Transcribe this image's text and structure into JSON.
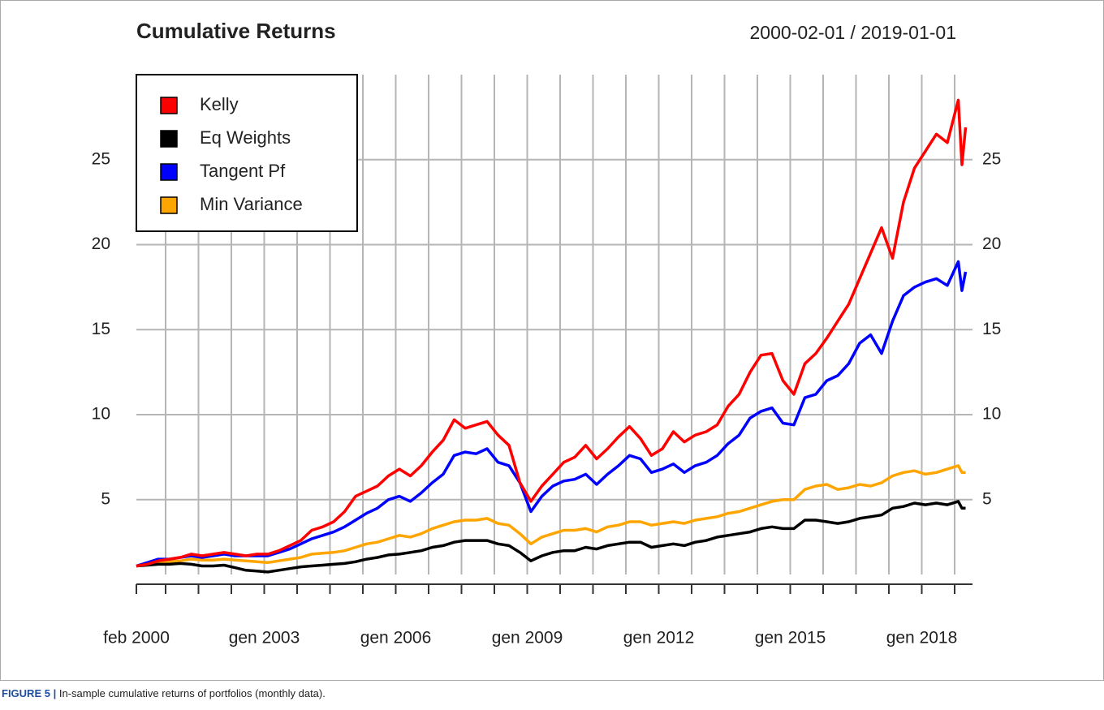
{
  "chart_data": {
    "type": "line",
    "title": "Cumulative Returns",
    "subtitle": "2000-02-01 / 2019-01-01",
    "x": [
      "2000-02",
      "2000-05",
      "2000-08",
      "2000-11",
      "2001-02",
      "2001-05",
      "2001-08",
      "2001-11",
      "2002-02",
      "2002-05",
      "2002-08",
      "2002-11",
      "2003-02",
      "2003-05",
      "2003-08",
      "2003-11",
      "2004-02",
      "2004-05",
      "2004-08",
      "2004-11",
      "2005-02",
      "2005-05",
      "2005-08",
      "2005-11",
      "2006-02",
      "2006-05",
      "2006-08",
      "2006-11",
      "2007-02",
      "2007-05",
      "2007-08",
      "2007-11",
      "2008-02",
      "2008-05",
      "2008-08",
      "2008-11",
      "2009-02",
      "2009-05",
      "2009-08",
      "2009-11",
      "2010-02",
      "2010-05",
      "2010-08",
      "2010-11",
      "2011-02",
      "2011-05",
      "2011-08",
      "2011-11",
      "2012-02",
      "2012-05",
      "2012-08",
      "2012-11",
      "2013-02",
      "2013-05",
      "2013-08",
      "2013-11",
      "2014-02",
      "2014-05",
      "2014-08",
      "2014-11",
      "2015-02",
      "2015-05",
      "2015-08",
      "2015-11",
      "2016-02",
      "2016-05",
      "2016-08",
      "2016-11",
      "2017-02",
      "2017-05",
      "2017-08",
      "2017-11",
      "2018-02",
      "2018-05",
      "2018-08",
      "2018-11",
      "2018-12",
      "2019-01"
    ],
    "series": [
      {
        "name": "Kelly",
        "color": "#ff0000",
        "values": [
          1.1,
          1.2,
          1.4,
          1.5,
          1.6,
          1.8,
          1.7,
          1.8,
          1.9,
          1.8,
          1.7,
          1.8,
          1.8,
          2.0,
          2.3,
          2.6,
          3.2,
          3.4,
          3.7,
          4.3,
          5.2,
          5.5,
          5.8,
          6.4,
          6.8,
          6.4,
          7.0,
          7.8,
          8.5,
          9.7,
          9.2,
          9.4,
          9.6,
          8.8,
          8.2,
          6.0,
          4.9,
          5.8,
          6.5,
          7.2,
          7.5,
          8.2,
          7.4,
          8.0,
          8.7,
          9.3,
          8.6,
          7.6,
          8.0,
          9.0,
          8.4,
          8.8,
          9.0,
          9.4,
          10.5,
          11.2,
          12.5,
          13.5,
          13.6,
          12.0,
          11.2,
          13.0,
          13.6,
          14.5,
          15.5,
          16.5,
          18.0,
          19.5,
          21.0,
          19.2,
          22.5,
          24.5,
          25.5,
          26.5,
          26.0,
          28.5,
          24.7,
          26.9
        ]
      },
      {
        "name": "Eq Weights",
        "color": "#000000",
        "values": [
          1.1,
          1.15,
          1.2,
          1.2,
          1.25,
          1.2,
          1.1,
          1.1,
          1.15,
          1.0,
          0.85,
          0.8,
          0.75,
          0.85,
          0.95,
          1.05,
          1.1,
          1.15,
          1.2,
          1.25,
          1.35,
          1.5,
          1.6,
          1.75,
          1.8,
          1.9,
          2.0,
          2.2,
          2.3,
          2.5,
          2.6,
          2.6,
          2.6,
          2.4,
          2.3,
          1.9,
          1.4,
          1.7,
          1.9,
          2.0,
          2.0,
          2.2,
          2.1,
          2.3,
          2.4,
          2.5,
          2.5,
          2.2,
          2.3,
          2.4,
          2.3,
          2.5,
          2.6,
          2.8,
          2.9,
          3.0,
          3.1,
          3.3,
          3.4,
          3.3,
          3.3,
          3.8,
          3.8,
          3.7,
          3.6,
          3.7,
          3.9,
          4.0,
          4.1,
          4.5,
          4.6,
          4.8,
          4.7,
          4.8,
          4.7,
          4.9,
          4.5,
          4.5
        ]
      },
      {
        "name": "Tangent Pf",
        "color": "#0000ff",
        "values": [
          1.1,
          1.3,
          1.5,
          1.5,
          1.6,
          1.7,
          1.6,
          1.7,
          1.8,
          1.7,
          1.7,
          1.7,
          1.7,
          1.9,
          2.1,
          2.4,
          2.7,
          2.9,
          3.1,
          3.4,
          3.8,
          4.2,
          4.5,
          5.0,
          5.2,
          4.9,
          5.4,
          6.0,
          6.5,
          7.6,
          7.8,
          7.7,
          8.0,
          7.2,
          7.0,
          6.0,
          4.3,
          5.2,
          5.8,
          6.1,
          6.2,
          6.5,
          5.9,
          6.5,
          7.0,
          7.6,
          7.4,
          6.6,
          6.8,
          7.1,
          6.6,
          7.0,
          7.2,
          7.6,
          8.3,
          8.8,
          9.8,
          10.2,
          10.4,
          9.5,
          9.4,
          11.0,
          11.2,
          12.0,
          12.3,
          13.0,
          14.2,
          14.7,
          13.6,
          15.5,
          17.0,
          17.5,
          17.8,
          18.0,
          17.6,
          19.0,
          17.3,
          18.4
        ]
      },
      {
        "name": "Min Variance",
        "color": "#ffa500",
        "values": [
          1.1,
          1.2,
          1.3,
          1.35,
          1.4,
          1.5,
          1.45,
          1.45,
          1.5,
          1.45,
          1.4,
          1.35,
          1.3,
          1.4,
          1.5,
          1.6,
          1.8,
          1.85,
          1.9,
          2.0,
          2.2,
          2.4,
          2.5,
          2.7,
          2.9,
          2.8,
          3.0,
          3.3,
          3.5,
          3.7,
          3.8,
          3.8,
          3.9,
          3.6,
          3.5,
          3.0,
          2.4,
          2.8,
          3.0,
          3.2,
          3.2,
          3.3,
          3.1,
          3.4,
          3.5,
          3.7,
          3.7,
          3.5,
          3.6,
          3.7,
          3.6,
          3.8,
          3.9,
          4.0,
          4.2,
          4.3,
          4.5,
          4.7,
          4.9,
          5.0,
          5.0,
          5.6,
          5.8,
          5.9,
          5.6,
          5.7,
          5.9,
          5.8,
          6.0,
          6.4,
          6.6,
          6.7,
          6.5,
          6.6,
          6.8,
          7.0,
          6.6,
          6.6
        ]
      }
    ],
    "xlim": [
      "2000-02",
      "2019-01"
    ],
    "xticks": [
      {
        "value": "2000-02",
        "label": "feb 2000"
      },
      {
        "value": "2003-01",
        "label": "gen 2003"
      },
      {
        "value": "2006-01",
        "label": "gen 2006"
      },
      {
        "value": "2009-01",
        "label": "gen 2009"
      },
      {
        "value": "2012-01",
        "label": "gen 2012"
      },
      {
        "value": "2015-01",
        "label": "gen 2015"
      },
      {
        "value": "2018-01",
        "label": "gen 2018"
      }
    ],
    "xgrid": [
      "2000-10",
      "2001-07",
      "2002-04",
      "2003-01",
      "2003-10",
      "2004-07",
      "2005-04",
      "2006-01",
      "2006-10",
      "2007-07",
      "2008-04",
      "2009-01",
      "2009-10",
      "2010-07",
      "2011-04",
      "2012-01",
      "2012-10",
      "2013-07",
      "2014-04",
      "2015-01",
      "2015-10",
      "2016-07",
      "2017-04",
      "2018-01",
      "2018-10"
    ],
    "ylim": [
      0.6,
      30
    ],
    "yticks": [
      5,
      10,
      15,
      20,
      25
    ],
    "grid": true,
    "legend": "top-left"
  },
  "caption": {
    "label": "FIGURE 5 |",
    "text": "In-sample cumulative returns of portfolios (monthly data)."
  }
}
